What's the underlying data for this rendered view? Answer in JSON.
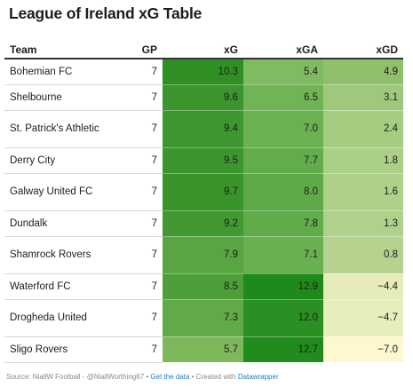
{
  "title": "League of Ireland xG Table",
  "columns": [
    "Team",
    "GP",
    "xG",
    "xGA",
    "xGD"
  ],
  "footer": {
    "source": "Source: NiallW Football - @NiallWorthing67 • ",
    "get_data": "Get the data",
    "created_with": " • Created with ",
    "datawrapper": "Datawrapper"
  },
  "colors": {
    "xg_scale": [
      "#7db95c",
      "#2f8f23"
    ],
    "xga_scale": [
      "#7fbb60",
      "#1f8a1c"
    ],
    "xgd_scale": [
      "#fdf8cf",
      "#8fc06e"
    ]
  },
  "chart_data": {
    "type": "table",
    "title": "League of Ireland xG Table",
    "columns": [
      "Team",
      "GP",
      "xG",
      "xGA",
      "xGD"
    ],
    "rows": [
      {
        "team": "Bohemian FC",
        "gp": 7,
        "xg": 10.3,
        "xga": 5.4,
        "xgd": 4.9
      },
      {
        "team": "Shelbourne",
        "gp": 7,
        "xg": 9.6,
        "xga": 6.5,
        "xgd": 3.1
      },
      {
        "team": "St. Patrick's Athletic",
        "gp": 7,
        "xg": 9.4,
        "xga": 7.0,
        "xgd": 2.4
      },
      {
        "team": "Derry City",
        "gp": 7,
        "xg": 9.5,
        "xga": 7.7,
        "xgd": 1.8
      },
      {
        "team": "Galway United FC",
        "gp": 7,
        "xg": 9.7,
        "xga": 8.0,
        "xgd": 1.6
      },
      {
        "team": "Dundalk",
        "gp": 7,
        "xg": 9.2,
        "xga": 7.8,
        "xgd": 1.3
      },
      {
        "team": "Shamrock Rovers",
        "gp": 7,
        "xg": 7.9,
        "xga": 7.1,
        "xgd": 0.8
      },
      {
        "team": "Waterford FC",
        "gp": 7,
        "xg": 8.5,
        "xga": 12.9,
        "xgd": -4.4
      },
      {
        "team": "Drogheda United",
        "gp": 7,
        "xg": 7.3,
        "xga": 12.0,
        "xgd": -4.7
      },
      {
        "team": "Sligo Rovers",
        "gp": 7,
        "xg": 5.7,
        "xga": 12.7,
        "xgd": -7.0
      }
    ]
  }
}
